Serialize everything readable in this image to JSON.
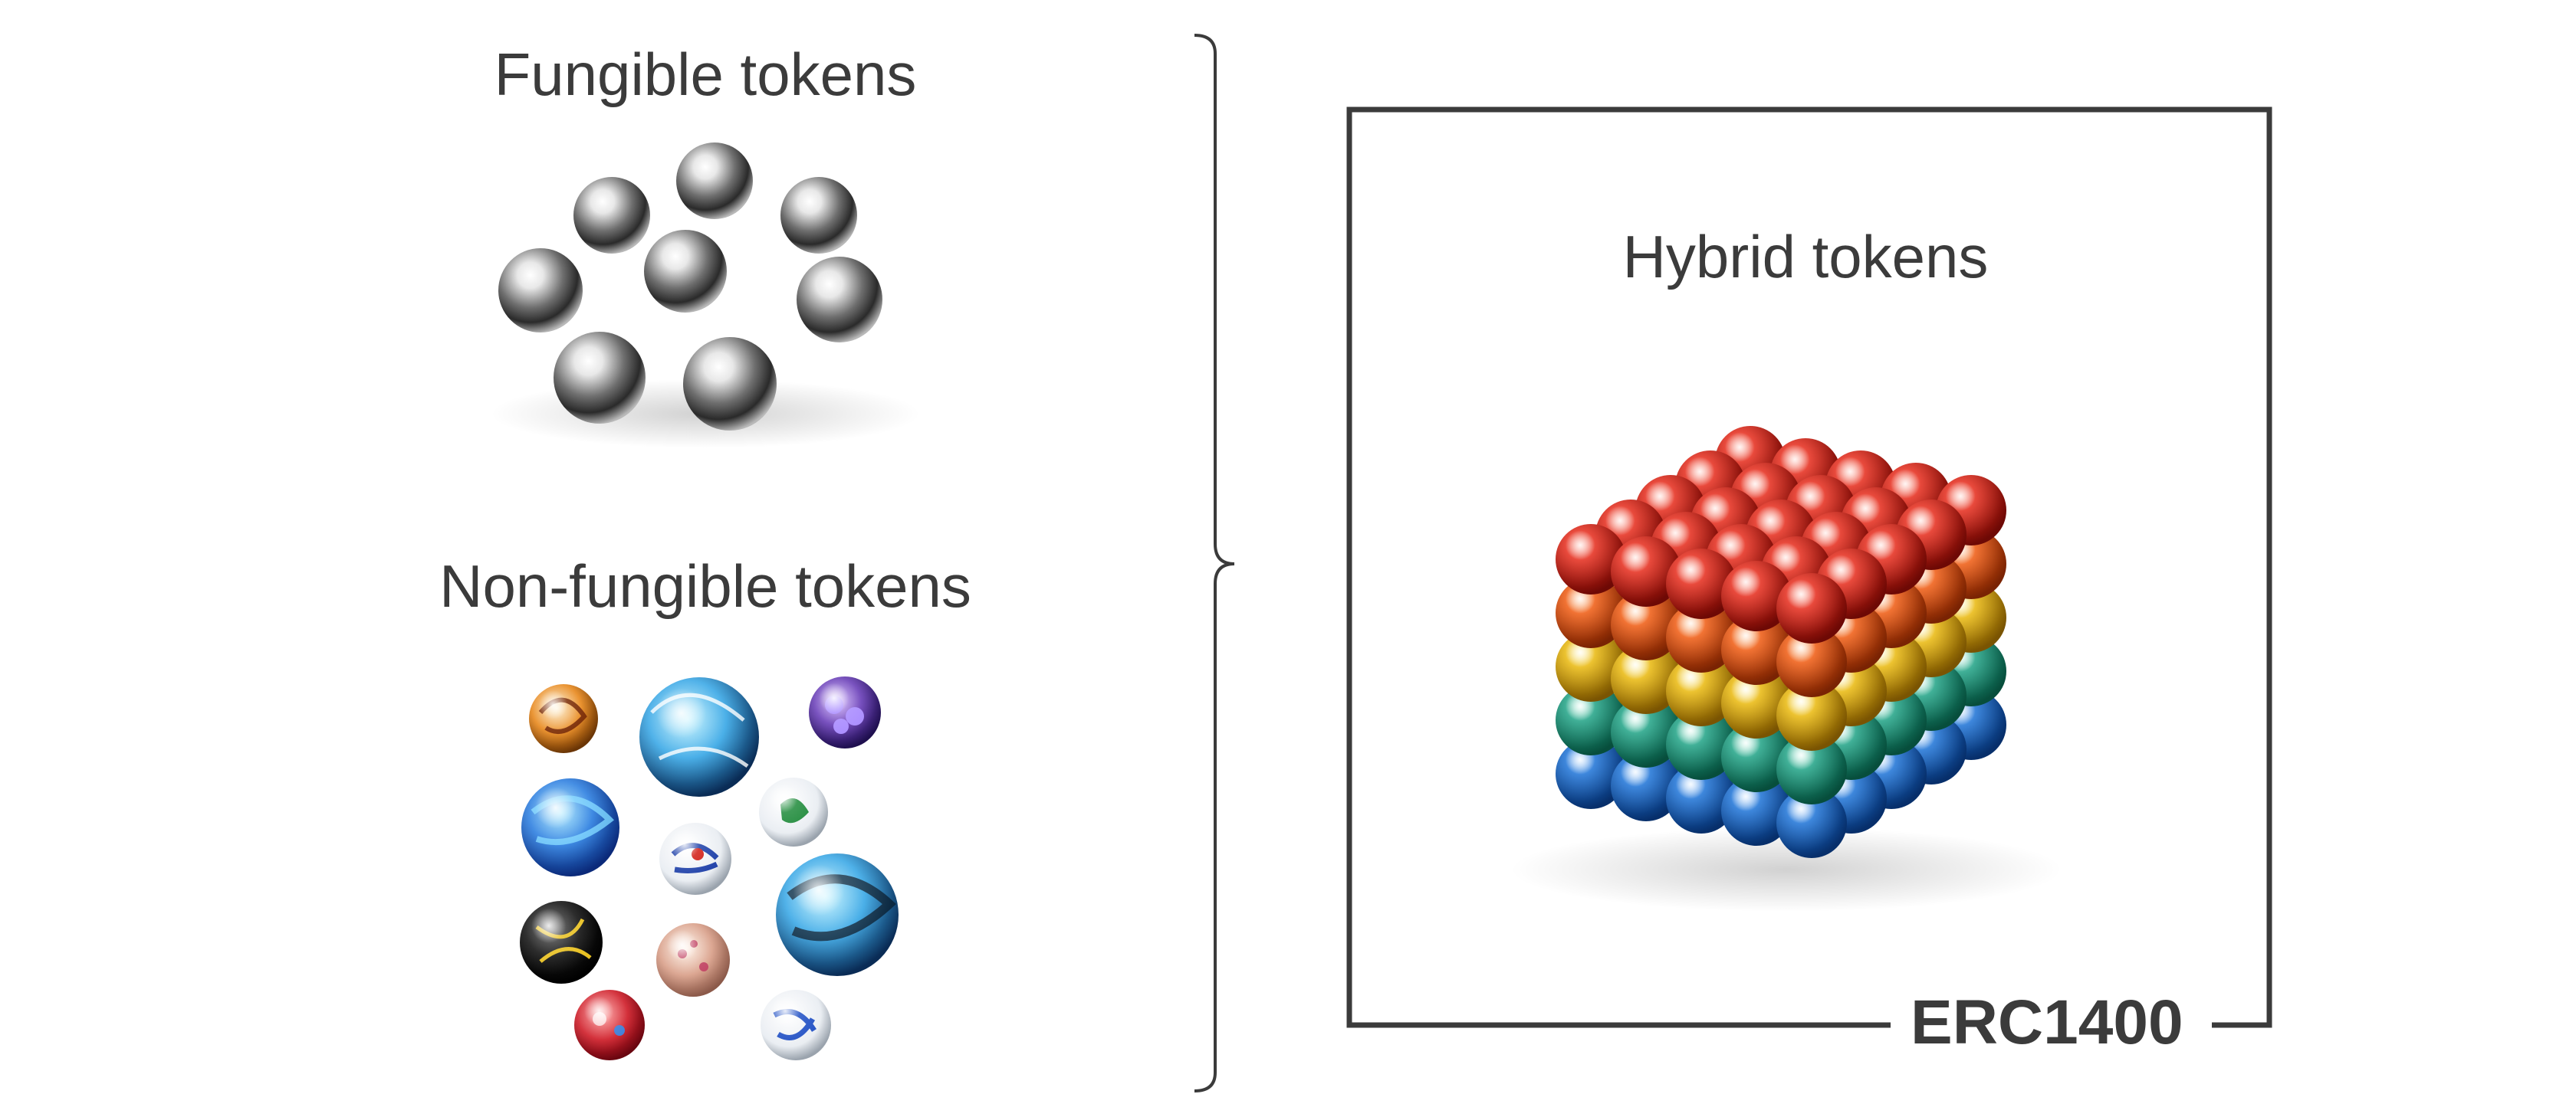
{
  "left_panel": {
    "fungible_title": "Fungible tokens",
    "non_fungible_title": "Non-fungible tokens"
  },
  "right_panel": {
    "hybrid_title": "Hybrid tokens",
    "standard_label": "ERC1400"
  },
  "icons": {
    "fungible": "silver-ball-bearings-icon",
    "non_fungible": "glass-marbles-icon",
    "hybrid": "rainbow-magnetic-ball-cube-icon"
  },
  "colors": {
    "text": "#3b3b3b",
    "frame": "#3b3b3b",
    "cube_rows": [
      "#d11a12",
      "#e4500e",
      "#e2b40c",
      "#1f9a7e",
      "#1b6fd0"
    ]
  }
}
